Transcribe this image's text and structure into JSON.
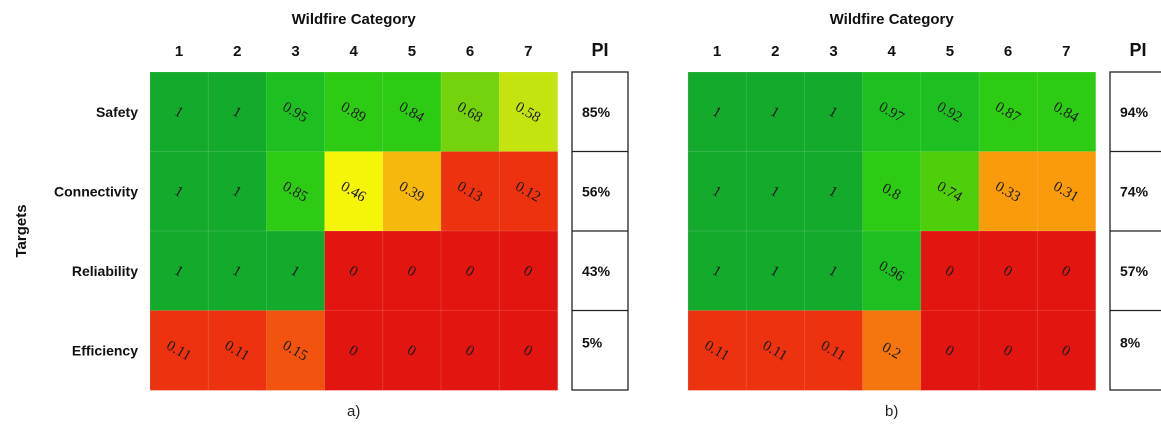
{
  "ylabel": "Targets",
  "chart_data": [
    {
      "type": "heatmap",
      "caption": "a)",
      "xlabel": "Wildfire Category",
      "categories": [
        "1",
        "2",
        "3",
        "4",
        "5",
        "6",
        "7"
      ],
      "rows": [
        "Safety",
        "Connectivity",
        "Reliability",
        "Efficiency"
      ],
      "pi_header": "PI",
      "values": [
        [
          1,
          1,
          0.95,
          0.89,
          0.84,
          0.68,
          0.58
        ],
        [
          1,
          1,
          0.85,
          0.46,
          0.39,
          0.13,
          0.12
        ],
        [
          1,
          1,
          1,
          0,
          0,
          0,
          0
        ],
        [
          0.11,
          0.11,
          0.15,
          0,
          0,
          0,
          0
        ]
      ],
      "pi": [
        "85%",
        "56%",
        "43%",
        "5%"
      ]
    },
    {
      "type": "heatmap",
      "caption": "b)",
      "xlabel": "Wildfire Category",
      "categories": [
        "1",
        "2",
        "3",
        "4",
        "5",
        "6",
        "7"
      ],
      "rows": [
        "Safety",
        "Connectivity",
        "Reliability",
        "Efficiency"
      ],
      "pi_header": "PI",
      "values": [
        [
          1,
          1,
          1,
          0.97,
          0.92,
          0.87,
          0.84
        ],
        [
          1,
          1,
          1,
          0.8,
          0.74,
          0.33,
          0.31
        ],
        [
          1,
          1,
          1,
          0.96,
          0,
          0,
          0
        ],
        [
          0.11,
          0.11,
          0.11,
          0.2,
          0,
          0,
          0
        ]
      ],
      "pi": [
        "94%",
        "74%",
        "57%",
        "8%"
      ]
    }
  ]
}
